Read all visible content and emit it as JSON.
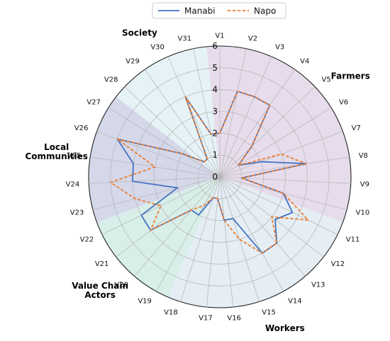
{
  "chart_data": {
    "type": "radar",
    "title": "",
    "axes": [
      "V1",
      "V2",
      "V3",
      "V4",
      "V5",
      "V6",
      "V7",
      "V8",
      "V9",
      "V10",
      "V11",
      "V12",
      "V13",
      "V14",
      "V15",
      "V16",
      "V17",
      "V18",
      "V19",
      "V20",
      "V21",
      "V22",
      "V23",
      "V24",
      "V25",
      "V26",
      "V27",
      "V28",
      "V29",
      "V30",
      "V31"
    ],
    "rlim": [
      0,
      6
    ],
    "rticks": [
      "0",
      "1",
      "2",
      "3",
      "4",
      "5",
      "6"
    ],
    "grid": true,
    "legend_position": "top-center",
    "groups": [
      {
        "label": "Farmers",
        "axes": [
          "V1",
          "V2",
          "V3",
          "V4",
          "V5",
          "V6",
          "V7",
          "V8",
          "V9",
          "V10"
        ],
        "color": "#e6dcec"
      },
      {
        "label": "Workers",
        "axes": [
          "V11",
          "V12",
          "V13",
          "V14",
          "V15",
          "V16",
          "V17",
          "V18"
        ],
        "color": "#e4eef4"
      },
      {
        "label": "Value Chain\nActors",
        "axes": [
          "V19",
          "V20",
          "V21",
          "V22"
        ],
        "color": "#d8eee9"
      },
      {
        "label": "Local\nCommunities",
        "axes": [
          "V23",
          "V24",
          "V25",
          "V26",
          "V27"
        ],
        "color": "#d5d8e9"
      },
      {
        "label": "Society",
        "axes": [
          "V28",
          "V29",
          "V30",
          "V31"
        ],
        "color": "#e6f3f6"
      }
    ],
    "series": [
      {
        "name": "Manabi",
        "color": "#4472c4",
        "dash": "solid",
        "values": [
          2.0,
          4.0,
          4.0,
          4.0,
          2.0,
          1.0,
          2.0,
          4.0,
          1.0,
          3.0,
          3.7,
          3.2,
          4.0,
          4.0,
          2.0,
          2.0,
          1.0,
          1.0,
          2.0,
          2.0,
          4.0,
          4.0,
          2.0,
          4.0,
          4.0,
          5.0,
          2.0,
          1.0,
          1.0,
          4.0,
          2.0
        ]
      },
      {
        "name": "Napo",
        "color": "#ed7d31",
        "dash": "dashed",
        "values": [
          2.0,
          4.0,
          4.0,
          4.0,
          2.0,
          1.0,
          3.0,
          4.0,
          1.0,
          3.0,
          4.5,
          3.0,
          4.0,
          4.0,
          3.0,
          2.0,
          1.0,
          1.0,
          1.5,
          2.0,
          4.0,
          3.0,
          4.0,
          5.0,
          3.0,
          5.0,
          2.0,
          1.0,
          1.0,
          4.0,
          2.0
        ]
      }
    ]
  }
}
